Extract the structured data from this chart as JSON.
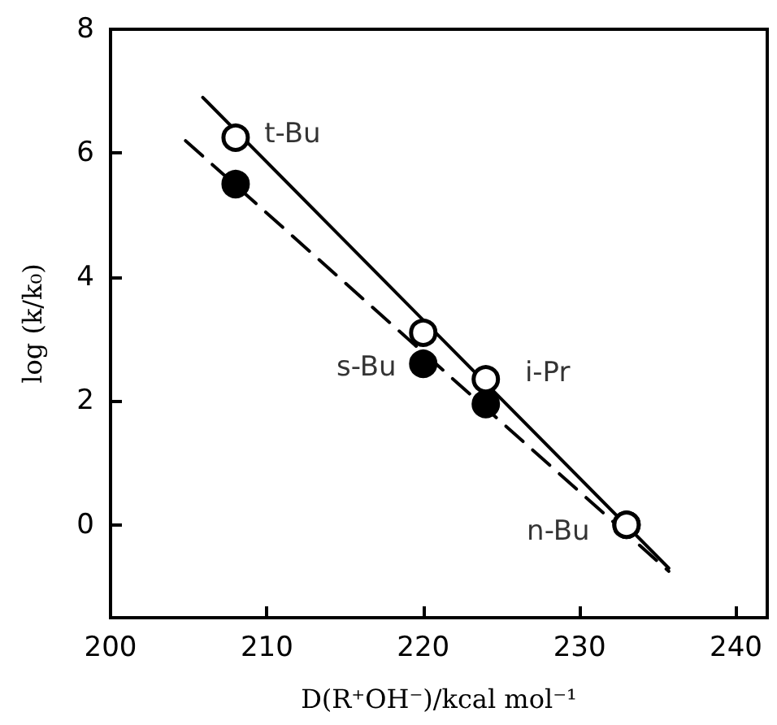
{
  "chart_data": {
    "type": "scatter",
    "xlabel": "D(R⁺OH⁻)/kcal mol⁻¹",
    "ylabel": "log (k/k₀)",
    "xlim": [
      200,
      242
    ],
    "xticks": [
      200,
      210,
      220,
      230,
      240
    ],
    "ylim": [
      -1.5,
      8
    ],
    "yticks": [
      0,
      2,
      4,
      6,
      8
    ],
    "series": [
      {
        "type": "line",
        "color": "#000000",
        "line_style": "solid",
        "marker": "none",
        "x": [
          205.9,
          235.7
        ],
        "values": [
          6.9,
          -0.7
        ]
      },
      {
        "type": "line",
        "color": "#000000",
        "line_style": "dashed",
        "marker": "none",
        "x": [
          204.8,
          235.7
        ],
        "values": [
          6.2,
          -0.75
        ]
      },
      {
        "color": "#000000",
        "marker": "circle",
        "x": [
          208,
          220,
          224,
          233
        ],
        "values": [
          5.5,
          2.6,
          1.95,
          0
        ]
      },
      {
        "color": "#ffffff",
        "marker": "circle",
        "x": [
          208,
          220,
          224,
          233
        ],
        "values": [
          6.25,
          3.1,
          2.35,
          0
        ]
      }
    ],
    "annotations": [
      {
        "text": "t-Bu",
        "x": 208,
        "y": 6.25
      },
      {
        "text": "s-Bu",
        "x": 220,
        "y": 2.6
      },
      {
        "text": "i-Pr",
        "x": 224,
        "y": 2.35
      },
      {
        "text": "n-Bu",
        "x": 233,
        "y": 0
      }
    ]
  }
}
